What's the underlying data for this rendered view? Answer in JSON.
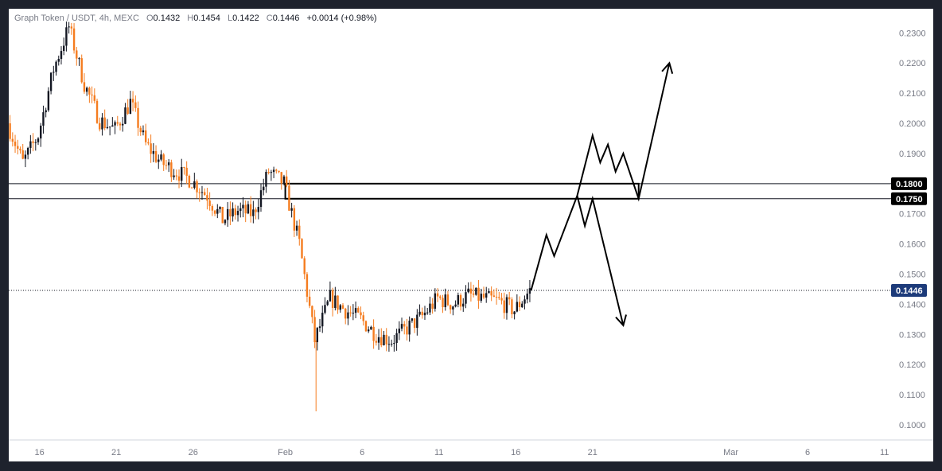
{
  "header": {
    "symbol": "Graph Token / USDT, 4h, MEXC",
    "open_label": "O",
    "open": "0.1432",
    "high_label": "H",
    "high": "0.1454",
    "low_label": "L",
    "low": "0.1422",
    "close_label": "C",
    "close": "0.1446",
    "change": "+0.0014 (+0.98%)"
  },
  "colors": {
    "up": "#131722",
    "down": "#f57c1f",
    "frame": "#1e222d",
    "price_tag": "#1d3b7a",
    "level_tag": "#000000"
  },
  "chart_data": {
    "type": "candlestick",
    "title": "Graph Token / USDT, 4h, MEXC",
    "ylim": [
      0.095,
      0.238
    ],
    "y_ticks": [
      "0.2300",
      "0.2200",
      "0.2100",
      "0.2000",
      "0.1900",
      "0.1700",
      "0.1600",
      "0.1500",
      "0.1400",
      "0.1300",
      "0.1200",
      "0.1100",
      "0.1000"
    ],
    "x_ticks": [
      "16",
      "21",
      "26",
      "Feb",
      "6",
      "11",
      "16",
      "21",
      "Mar",
      "6",
      "11"
    ],
    "levels": [
      {
        "label": "0.1800",
        "value": 0.18
      },
      {
        "label": "0.1750",
        "value": 0.175
      }
    ],
    "last_price": {
      "label": "0.1446",
      "value": 0.1446
    },
    "zone": {
      "from": "Feb 1",
      "to": "Feb 24",
      "low": 0.175,
      "high": 0.18
    },
    "price_path": [
      {
        "x": "Jan 14",
        "price": 0.2
      },
      {
        "x": "Jan 15",
        "price": 0.187
      },
      {
        "x": "Jan 16",
        "price": 0.196
      },
      {
        "x": "Jan 17",
        "price": 0.218
      },
      {
        "x": "Jan 18",
        "price": 0.232
      },
      {
        "x": "Jan 19",
        "price": 0.213
      },
      {
        "x": "Jan 20",
        "price": 0.201
      },
      {
        "x": "Jan 21",
        "price": 0.198
      },
      {
        "x": "Jan 22",
        "price": 0.207
      },
      {
        "x": "Jan 23",
        "price": 0.193
      },
      {
        "x": "Jan 24",
        "price": 0.187
      },
      {
        "x": "Jan 25",
        "price": 0.184
      },
      {
        "x": "Jan 26",
        "price": 0.181
      },
      {
        "x": "Jan 27",
        "price": 0.176
      },
      {
        "x": "Jan 28",
        "price": 0.168
      },
      {
        "x": "Jan 29",
        "price": 0.171
      },
      {
        "x": "Jan 30",
        "price": 0.17
      },
      {
        "x": "Jan 31",
        "price": 0.184
      },
      {
        "x": "Feb 1",
        "price": 0.18
      },
      {
        "x": "Feb 2",
        "price": 0.16
      },
      {
        "x": "Feb 3",
        "price": 0.128
      },
      {
        "x": "Feb 4",
        "price": 0.142
      },
      {
        "x": "Feb 5",
        "price": 0.138
      },
      {
        "x": "Feb 6",
        "price": 0.135
      },
      {
        "x": "Feb 7",
        "price": 0.13
      },
      {
        "x": "Feb 8",
        "price": 0.128
      },
      {
        "x": "Feb 9",
        "price": 0.132
      },
      {
        "x": "Feb 10",
        "price": 0.136
      },
      {
        "x": "Feb 11",
        "price": 0.142
      },
      {
        "x": "Feb 12",
        "price": 0.14
      },
      {
        "x": "Feb 13",
        "price": 0.143
      },
      {
        "x": "Feb 14",
        "price": 0.142
      },
      {
        "x": "Feb 15",
        "price": 0.141
      },
      {
        "x": "Feb 16",
        "price": 0.138
      },
      {
        "x": "Feb 17",
        "price": 0.1446
      }
    ],
    "projection_bull": [
      {
        "x": "Feb 17",
        "price": 0.1446
      },
      {
        "x": "Feb 18",
        "price": 0.163
      },
      {
        "x": "Feb 18.5",
        "price": 0.156
      },
      {
        "x": "Feb 20",
        "price": 0.176
      },
      {
        "x": "Feb 21",
        "price": 0.196
      },
      {
        "x": "Feb 21.5",
        "price": 0.187
      },
      {
        "x": "Feb 22",
        "price": 0.193
      },
      {
        "x": "Feb 22.5",
        "price": 0.184
      },
      {
        "x": "Feb 23",
        "price": 0.19
      },
      {
        "x": "Feb 24",
        "price": 0.175
      },
      {
        "x": "Feb 26",
        "price": 0.22
      }
    ],
    "projection_bear": [
      {
        "x": "Feb 20",
        "price": 0.176
      },
      {
        "x": "Feb 20.5",
        "price": 0.166
      },
      {
        "x": "Feb 21",
        "price": 0.175
      },
      {
        "x": "Feb 23",
        "price": 0.133
      }
    ]
  }
}
